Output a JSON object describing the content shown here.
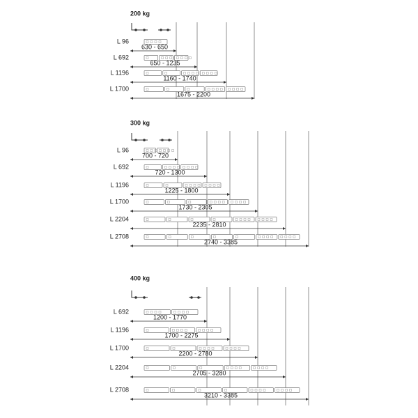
{
  "sections": [
    {
      "title": "200 kg",
      "rows": [
        {
          "label": "L 96",
          "range": "630 - 650"
        },
        {
          "label": "L 692",
          "range": "650 - 1235"
        },
        {
          "label": "L 1196",
          "range": "1160 - 1740"
        },
        {
          "label": "L 1700",
          "range": "1675 - 2200"
        }
      ]
    },
    {
      "title": "300 kg",
      "rows": [
        {
          "label": "L 96",
          "range": "700 - 720"
        },
        {
          "label": "L 692",
          "range": "720 - 1300"
        },
        {
          "label": "L 1196",
          "range": "1225 - 1800"
        },
        {
          "label": "L 1700",
          "range": "1730 - 2305"
        },
        {
          "label": "L 2204",
          "range": "2235 - 2810"
        },
        {
          "label": "L 2708",
          "range": "2740 - 3385"
        }
      ]
    },
    {
      "title": "400 kg",
      "rows": [
        {
          "label": "L 692",
          "range": "1200 - 1770"
        },
        {
          "label": "L 1196",
          "range": "1700 - 2275"
        },
        {
          "label": "L 1700",
          "range": "2200 - 2780"
        },
        {
          "label": "L 2204",
          "range": "2705 - 3280"
        },
        {
          "label": "L 2708",
          "range": "3210 - 3385"
        }
      ]
    }
  ]
}
